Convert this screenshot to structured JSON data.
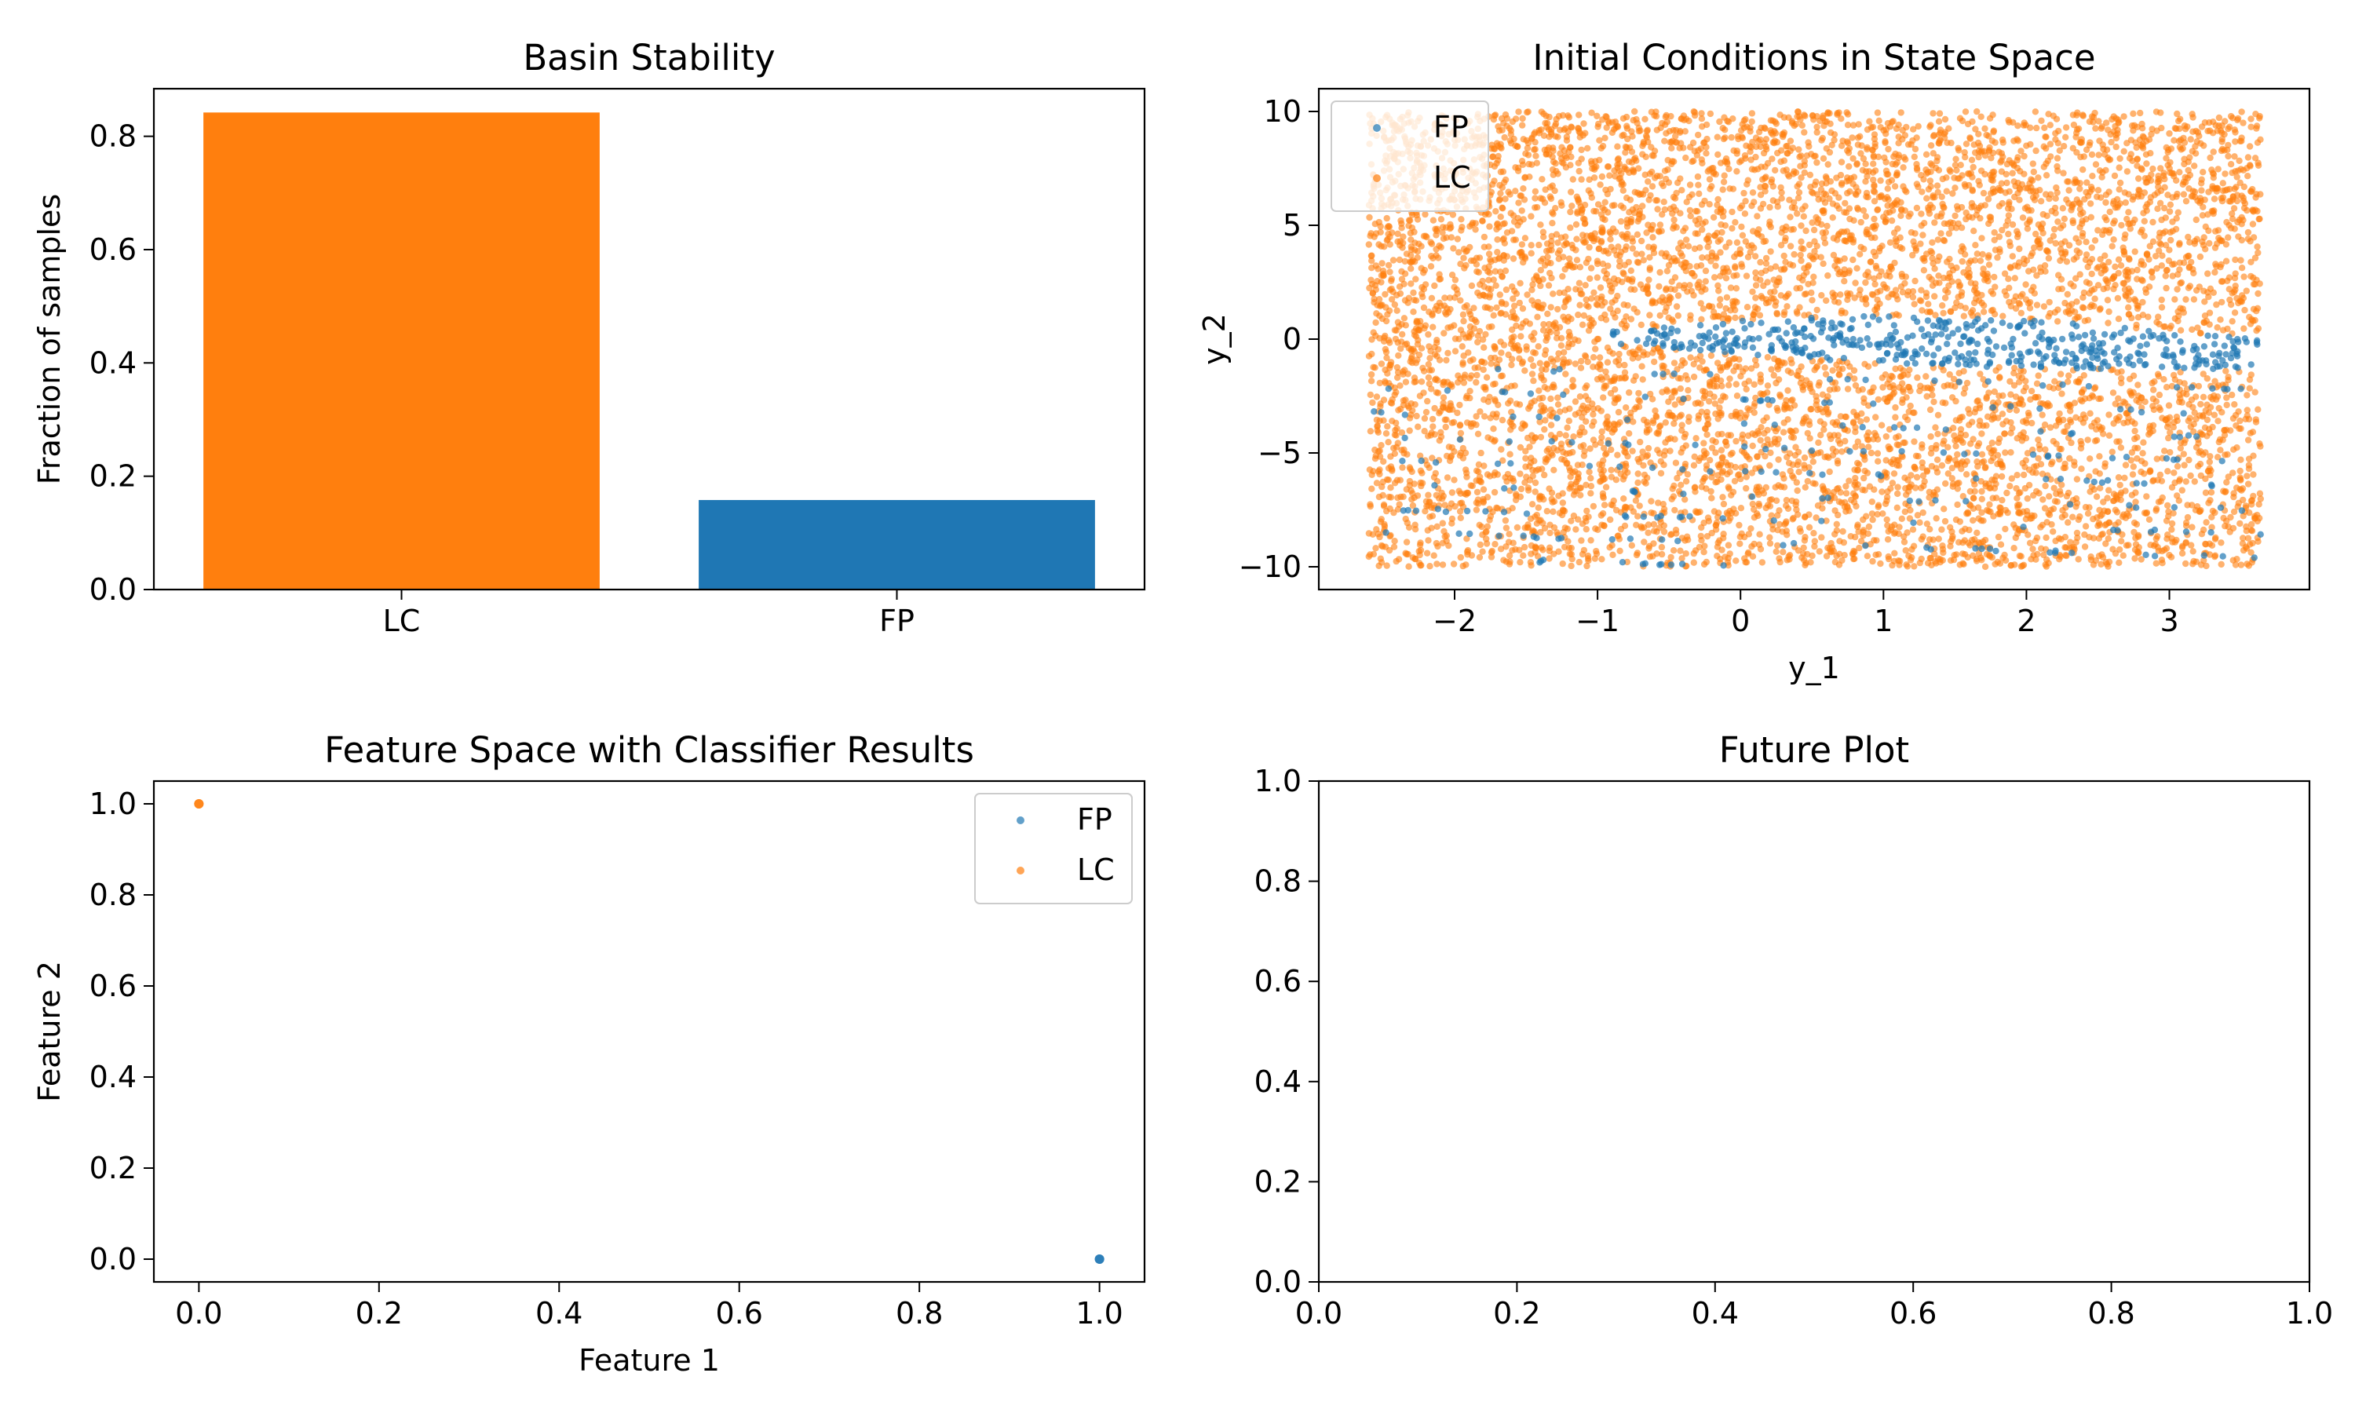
{
  "chart_data": [
    {
      "type": "bar",
      "title": "Basin Stability",
      "xlabel": "",
      "ylabel": "Fraction of samples",
      "categories": [
        "LC",
        "FP"
      ],
      "values": [
        0.842,
        0.158
      ],
      "bar_colors": [
        "#ff7f0e",
        "#1f77b4"
      ],
      "xticks": [
        "LC",
        "FP"
      ],
      "yticks": [
        "0.0",
        "0.2",
        "0.4",
        "0.6",
        "0.8"
      ],
      "ylim": [
        0,
        0.884
      ]
    },
    {
      "type": "scatter",
      "title": "Initial Conditions in State Space",
      "xlabel": "y_1",
      "ylabel": "y_2",
      "xlim": [
        -2.95,
        3.98
      ],
      "ylim": [
        -11.0,
        11.0
      ],
      "xticks": [
        "−2",
        "−1",
        "0",
        "1",
        "2",
        "3"
      ],
      "yticks": [
        "−10",
        "−5",
        "0",
        "5",
        "10"
      ],
      "legend_position": "upper-left",
      "series": [
        {
          "name": "FP",
          "color": "#1f77b4"
        },
        {
          "name": "LC",
          "color": "#ff7f0e"
        }
      ],
      "x_range_samples": [
        -2.6,
        3.64
      ],
      "y_range_samples": [
        -10,
        10
      ],
      "n_samples": 10000,
      "fp_fraction": 0.158
    },
    {
      "type": "scatter",
      "title": "Feature Space with Classifier Results",
      "xlabel": "Feature 1",
      "ylabel": "Feature 2",
      "xlim": [
        -0.05,
        1.05
      ],
      "ylim": [
        -0.05,
        1.05
      ],
      "xticks": [
        "0.0",
        "0.2",
        "0.4",
        "0.6",
        "0.8",
        "1.0"
      ],
      "yticks": [
        "0.0",
        "0.2",
        "0.4",
        "0.6",
        "0.8",
        "1.0"
      ],
      "legend_position": "upper-right",
      "series": [
        {
          "name": "FP",
          "color": "#1f77b4",
          "x": [
            1.0
          ],
          "y": [
            0.0
          ]
        },
        {
          "name": "LC",
          "color": "#ff7f0e",
          "x": [
            0.0
          ],
          "y": [
            1.0
          ]
        }
      ]
    },
    {
      "type": "line",
      "title": "Future Plot",
      "xlabel": "",
      "ylabel": "",
      "xlim": [
        0,
        1
      ],
      "ylim": [
        0,
        1
      ],
      "xticks": [
        "0.0",
        "0.2",
        "0.4",
        "0.6",
        "0.8",
        "1.0"
      ],
      "yticks": [
        "0.0",
        "0.2",
        "0.4",
        "0.6",
        "0.8",
        "1.0"
      ],
      "series": []
    }
  ]
}
